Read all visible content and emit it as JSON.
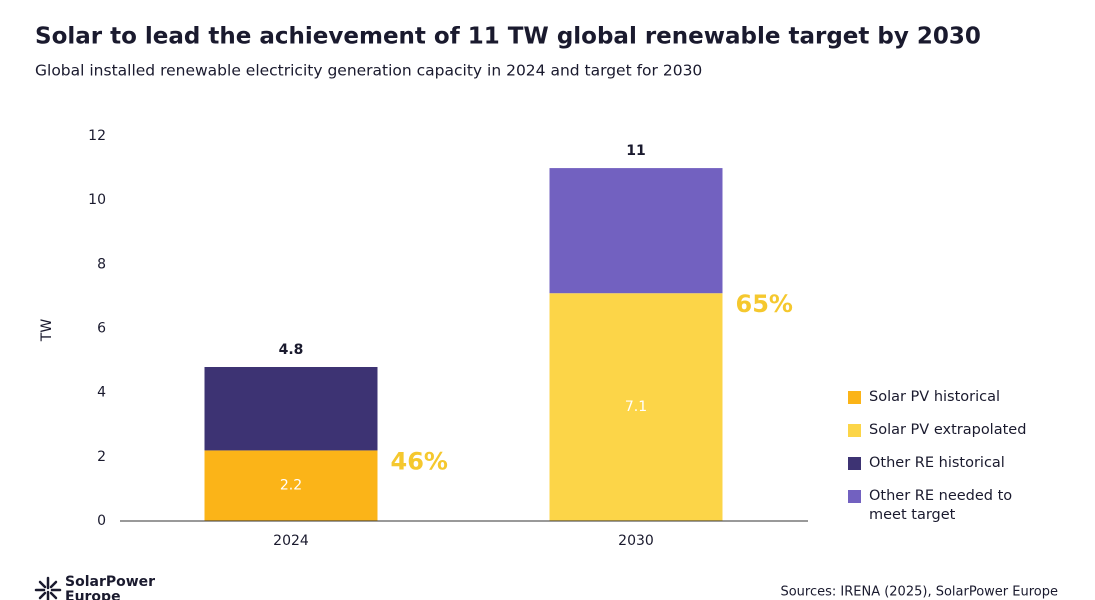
{
  "chart_data": {
    "type": "stacked_bar",
    "title": "Solar to lead the achievement of 11 TW global renewable target by 2030",
    "subtitle": "Global installed renewable electricity generation capacity in 2024 and target for 2030",
    "y_label": "TW",
    "categories": [
      "2024",
      "2030"
    ],
    "series": [
      {
        "name": "Solar PV historical",
        "color": "#fbb418",
        "values": [
          2.2,
          null
        ],
        "show_values": true
      },
      {
        "name": "Solar PV extrapolated",
        "color": "#fcd548",
        "values": [
          null,
          7.1
        ],
        "show_values": true
      },
      {
        "name": "Other RE historical",
        "color": "#3d3373",
        "values": [
          2.6,
          null
        ]
      },
      {
        "name": "Other RE needed to meet target",
        "color": "#7261c0",
        "values": [
          null,
          3.9
        ]
      }
    ],
    "totals": [
      4.8,
      11
    ],
    "solar_share": {
      "values": [
        46,
        65
      ],
      "value_labels": [
        "46%",
        "65%"
      ],
      "color": "#f5c82e"
    },
    "ylim": [
      0,
      12
    ],
    "yticks": [
      0,
      2,
      4,
      6,
      8,
      10,
      12
    ]
  },
  "footer": {
    "source": "Sources: IRENA (2025), SolarPower Europe",
    "logo_lines": [
      "SolarPower",
      "Europe"
    ]
  }
}
